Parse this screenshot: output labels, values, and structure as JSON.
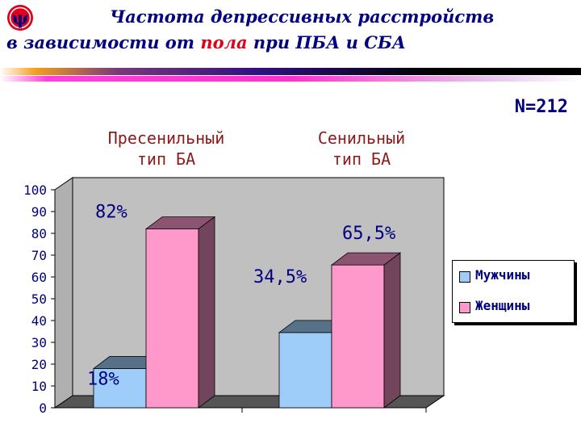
{
  "title": {
    "line1": "Частота депрессивных расстройств",
    "line2_prefix": "в зависимости от ",
    "line2_highlight": "пола",
    "line2_suffix": " при ПБА и СБА"
  },
  "logo_icon": "psi-icon",
  "sample_size_label": "N=212",
  "colors": {
    "title": "#000080",
    "title_highlight": "#e0001b",
    "male_bar": "#9fcdf9",
    "female_bar": "#ff99cc",
    "plot_wall": "#c0c0c0",
    "data_label": "#000080",
    "group_label": "#8b1a1a"
  },
  "chart_data": {
    "type": "bar",
    "categories": [
      "Пресенильный тип БА",
      "Сенильный тип БА"
    ],
    "category_labels": [
      {
        "line1": "Пресенильный",
        "line2": "тип БА"
      },
      {
        "line1": "Сенильный",
        "line2": "тип БА"
      }
    ],
    "series": [
      {
        "name": "Мужчины",
        "values": [
          18,
          34.5
        ],
        "data_labels": [
          "18%",
          "34,5%"
        ],
        "color": "#9fcdf9"
      },
      {
        "name": "Женщины",
        "values": [
          82,
          65.5
        ],
        "data_labels": [
          "82%",
          "65,5%"
        ],
        "color": "#ff99cc"
      }
    ],
    "ylim": [
      0,
      100
    ],
    "yticks": [
      0,
      10,
      20,
      30,
      40,
      50,
      60,
      70,
      80,
      90,
      100
    ],
    "grid": false,
    "three_d": true,
    "legend_position": "right"
  }
}
